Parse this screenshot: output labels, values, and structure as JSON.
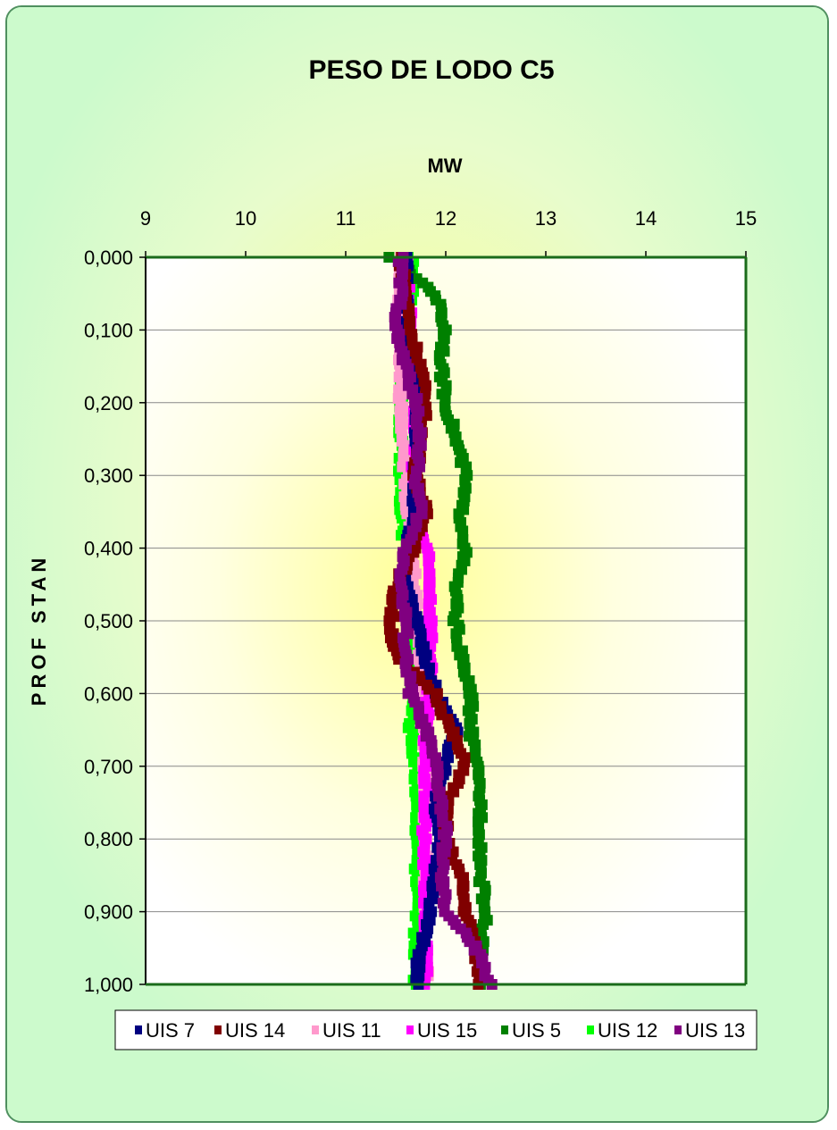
{
  "chart_data": {
    "type": "scatter",
    "title": "PESO DE LODO C5",
    "xlabel": "MW",
    "ylabel": "PROF STAN",
    "xlim": [
      9,
      15
    ],
    "ylim": [
      0,
      1
    ],
    "y_inverted": true,
    "x_axis_position": "top",
    "x_ticks": [
      "9",
      "10",
      "11",
      "12",
      "13",
      "14",
      "15"
    ],
    "y_ticks": [
      "0,000",
      "0,100",
      "0,200",
      "0,300",
      "0,400",
      "0,500",
      "0,600",
      "0,700",
      "0,800",
      "0,900",
      "1,000"
    ],
    "grid": "horizontal",
    "legend_position": "bottom",
    "series": [
      {
        "name": "UIS 7",
        "color": "#000080",
        "y": [
          0,
          0.05,
          0.1,
          0.15,
          0.2,
          0.25,
          0.3,
          0.35,
          0.4,
          0.45,
          0.5,
          0.55,
          0.6,
          0.65,
          0.7,
          0.75,
          0.8,
          0.85,
          0.9,
          0.95,
          1.0
        ],
        "x": [
          11.6,
          11.6,
          11.62,
          11.65,
          11.7,
          11.72,
          11.7,
          11.68,
          11.6,
          11.6,
          11.7,
          11.8,
          11.9,
          12.1,
          12.0,
          11.9,
          11.95,
          11.9,
          11.85,
          11.75,
          11.7
        ]
      },
      {
        "name": "UIS 14",
        "color": "#800000",
        "y": [
          0,
          0.05,
          0.1,
          0.15,
          0.2,
          0.25,
          0.3,
          0.35,
          0.4,
          0.45,
          0.5,
          0.55,
          0.6,
          0.65,
          0.7,
          0.75,
          0.8,
          0.85,
          0.9,
          0.95,
          1.0
        ],
        "x": [
          11.55,
          11.6,
          11.65,
          11.75,
          11.8,
          11.75,
          11.7,
          11.8,
          11.7,
          11.5,
          11.45,
          11.5,
          11.9,
          12.05,
          12.2,
          12.0,
          12.0,
          12.15,
          12.2,
          12.3,
          12.35
        ]
      },
      {
        "name": "UIS 11",
        "color": "#ff99cc",
        "y": [
          0,
          0.05,
          0.1,
          0.15,
          0.2,
          0.25,
          0.3,
          0.35,
          0.4,
          0.45,
          0.5,
          0.55,
          0.6,
          0.65,
          0.7,
          0.75,
          0.8,
          0.85,
          0.9,
          0.95,
          1.0
        ],
        "x": [
          11.55,
          11.55,
          11.55,
          11.55,
          11.55,
          11.58,
          11.6,
          11.62,
          11.65,
          11.7,
          11.72,
          11.75,
          11.78,
          11.8,
          11.8,
          11.8,
          11.8,
          11.8,
          11.8,
          11.8,
          11.8
        ]
      },
      {
        "name": "UIS 15",
        "color": "#ff00ff",
        "y": [
          0,
          0.05,
          0.1,
          0.15,
          0.2,
          0.25,
          0.3,
          0.35,
          0.4,
          0.45,
          0.5,
          0.55,
          0.6,
          0.65,
          0.7,
          0.75,
          0.8,
          0.85,
          0.9,
          0.95,
          1.0
        ],
        "x": [
          11.6,
          11.62,
          11.65,
          11.68,
          11.7,
          11.7,
          11.68,
          11.7,
          11.8,
          11.85,
          11.85,
          11.85,
          11.82,
          11.8,
          11.8,
          11.8,
          11.78,
          11.8,
          11.8,
          11.8,
          11.8
        ]
      },
      {
        "name": "UIS 5",
        "color": "#008000",
        "y": [
          0,
          0.05,
          0.1,
          0.15,
          0.2,
          0.25,
          0.3,
          0.35,
          0.4,
          0.45,
          0.5,
          0.55,
          0.6,
          0.65,
          0.7,
          0.75,
          0.8,
          0.85,
          0.9,
          0.95,
          1.0
        ],
        "x": [
          11.45,
          11.9,
          12.0,
          11.95,
          12.0,
          12.1,
          12.2,
          12.15,
          12.2,
          12.1,
          12.1,
          12.15,
          12.25,
          12.25,
          12.3,
          12.35,
          12.35,
          12.35,
          12.4,
          12.35,
          12.35
        ]
      },
      {
        "name": "UIS 12",
        "color": "#00ff00",
        "y": [
          0,
          0.05,
          0.1,
          0.15,
          0.2,
          0.25,
          0.3,
          0.35,
          0.4,
          0.45,
          0.5,
          0.55,
          0.6,
          0.65,
          0.7,
          0.75,
          0.8,
          0.85,
          0.9,
          0.95,
          1.0
        ],
        "x": [
          11.65,
          11.65,
          11.6,
          11.6,
          11.55,
          11.55,
          11.55,
          11.55,
          11.6,
          11.62,
          11.65,
          11.65,
          11.68,
          11.65,
          11.7,
          11.72,
          11.72,
          11.7,
          11.7,
          11.7,
          11.7
        ]
      },
      {
        "name": "UIS 13",
        "color": "#800080",
        "y": [
          0,
          0.05,
          0.1,
          0.15,
          0.2,
          0.25,
          0.3,
          0.35,
          0.4,
          0.45,
          0.5,
          0.55,
          0.6,
          0.65,
          0.7,
          0.75,
          0.8,
          0.85,
          0.9,
          0.95,
          1.0
        ],
        "x": [
          11.55,
          11.55,
          11.5,
          11.6,
          11.7,
          11.75,
          11.7,
          11.75,
          11.6,
          11.55,
          11.6,
          11.6,
          11.65,
          11.8,
          11.9,
          11.95,
          12.0,
          11.95,
          12.0,
          12.3,
          12.45
        ]
      }
    ]
  }
}
